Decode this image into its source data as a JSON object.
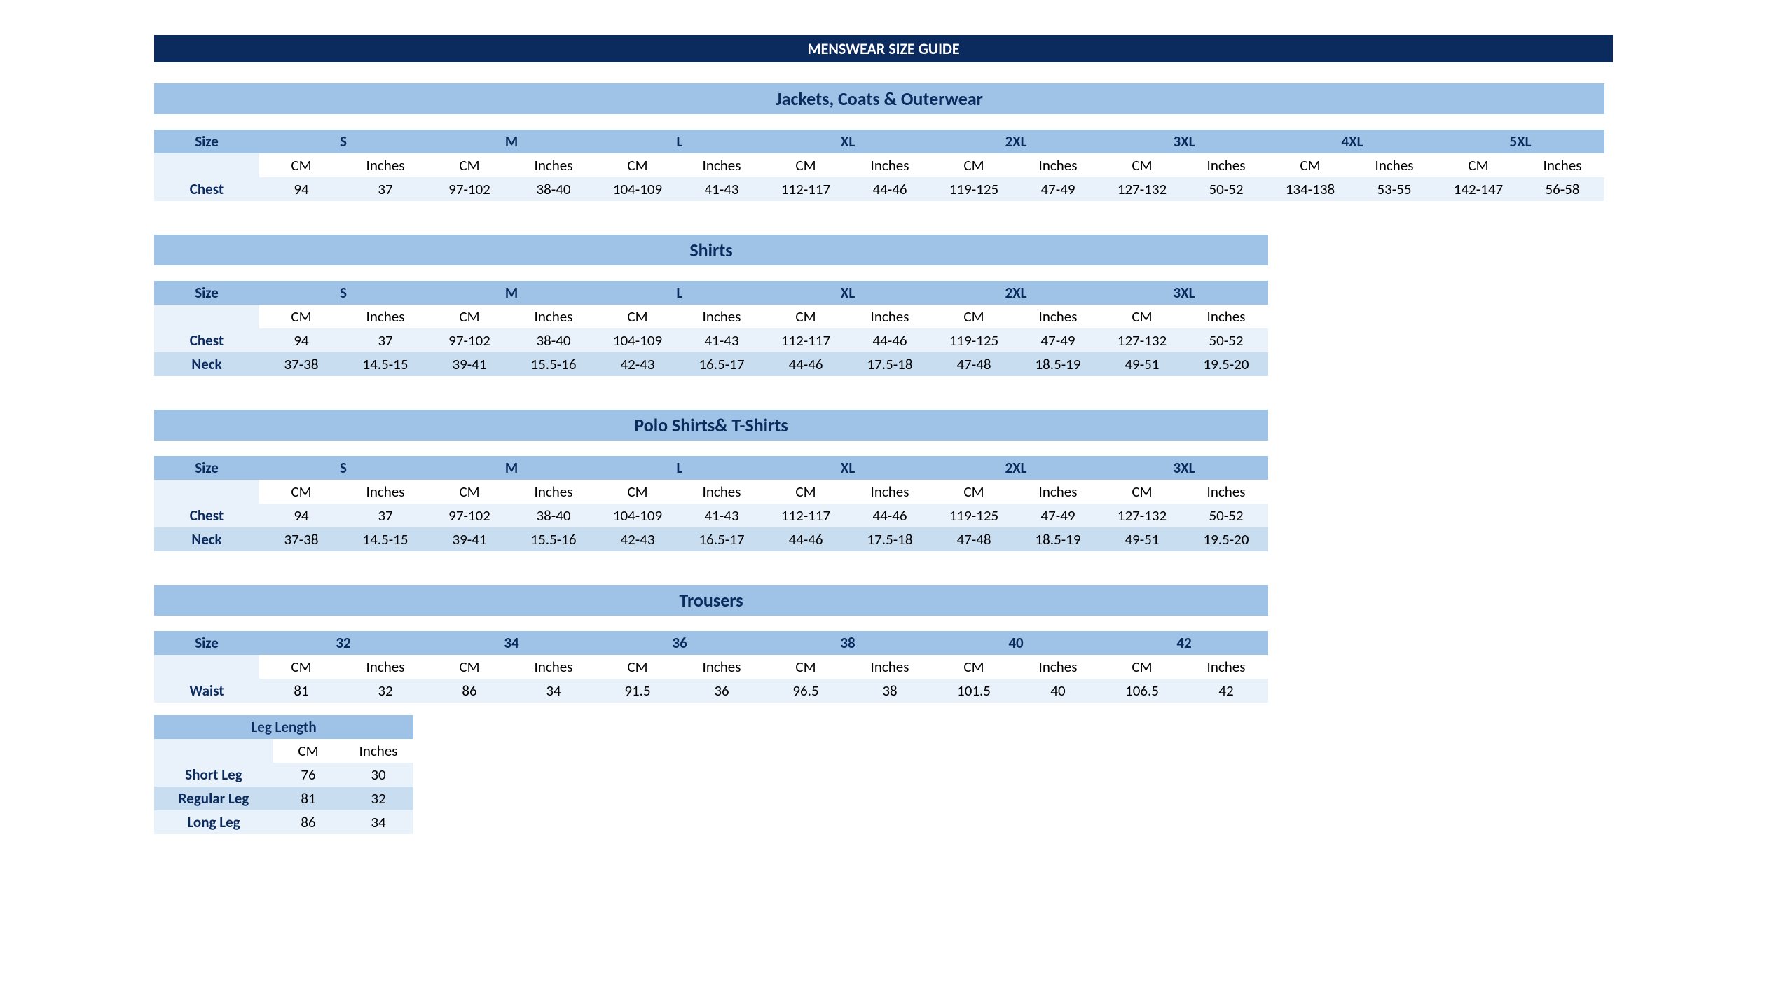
{
  "colors": {
    "main_title_bg": "#0b2a5e",
    "main_title_text": "#ffffff",
    "section_title_bg": "#9ec3e6",
    "section_title_text": "#0b2a5e",
    "header_bg": "#9ec3e6",
    "header_text": "#0b2a5e",
    "unit_blank_bg": "#e9f1fa",
    "row_a_bg": "#e9f1fa",
    "row_b_bg": "#c8ddf0",
    "page_bg": "#ffffff",
    "body_text": "#000000"
  },
  "layout": {
    "label_col_w": 150,
    "data_col_w": 120,
    "leg_label_col_w": 170,
    "leg_data_col_w": 100,
    "title_fontsize": 22,
    "section_title_fontsize": 26,
    "cell_fontsize": 21
  },
  "main_title": "MENSWEAR SIZE GUIDE",
  "size_label": "Size",
  "unit_cm": "CM",
  "unit_in": "Inches",
  "sections": [
    {
      "title": "Jackets, Coats & Outerwear",
      "full_width_title": true,
      "sizes": [
        "S",
        "M",
        "L",
        "XL",
        "2XL",
        "3XL",
        "4XL",
        "5XL"
      ],
      "rows": [
        {
          "label": "Chest",
          "values": [
            {
              "cm": "94",
              "in": "37"
            },
            {
              "cm": "97-102",
              "in": "38-40"
            },
            {
              "cm": "104-109",
              "in": "41-43"
            },
            {
              "cm": "112-117",
              "in": "44-46"
            },
            {
              "cm": "119-125",
              "in": "47-49"
            },
            {
              "cm": "127-132",
              "in": "50-52"
            },
            {
              "cm": "134-138",
              "in": "53-55"
            },
            {
              "cm": "142-147",
              "in": "56-58"
            }
          ]
        }
      ]
    },
    {
      "title": "Shirts",
      "full_width_title": false,
      "sizes": [
        "S",
        "M",
        "L",
        "XL",
        "2XL",
        "3XL"
      ],
      "rows": [
        {
          "label": "Chest",
          "values": [
            {
              "cm": "94",
              "in": "37"
            },
            {
              "cm": "97-102",
              "in": "38-40"
            },
            {
              "cm": "104-109",
              "in": "41-43"
            },
            {
              "cm": "112-117",
              "in": "44-46"
            },
            {
              "cm": "119-125",
              "in": "47-49"
            },
            {
              "cm": "127-132",
              "in": "50-52"
            }
          ]
        },
        {
          "label": "Neck",
          "values": [
            {
              "cm": "37-38",
              "in": "14.5-15"
            },
            {
              "cm": "39-41",
              "in": "15.5-16"
            },
            {
              "cm": "42-43",
              "in": "16.5-17"
            },
            {
              "cm": "44-46",
              "in": "17.5-18"
            },
            {
              "cm": "47-48",
              "in": "18.5-19"
            },
            {
              "cm": "49-51",
              "in": "19.5-20"
            }
          ]
        }
      ]
    },
    {
      "title": "Polo Shirts& T-Shirts",
      "full_width_title": false,
      "sizes": [
        "S",
        "M",
        "L",
        "XL",
        "2XL",
        "3XL"
      ],
      "rows": [
        {
          "label": "Chest",
          "values": [
            {
              "cm": "94",
              "in": "37"
            },
            {
              "cm": "97-102",
              "in": "38-40"
            },
            {
              "cm": "104-109",
              "in": "41-43"
            },
            {
              "cm": "112-117",
              "in": "44-46"
            },
            {
              "cm": "119-125",
              "in": "47-49"
            },
            {
              "cm": "127-132",
              "in": "50-52"
            }
          ]
        },
        {
          "label": "Neck",
          "values": [
            {
              "cm": "37-38",
              "in": "14.5-15"
            },
            {
              "cm": "39-41",
              "in": "15.5-16"
            },
            {
              "cm": "42-43",
              "in": "16.5-17"
            },
            {
              "cm": "44-46",
              "in": "17.5-18"
            },
            {
              "cm": "47-48",
              "in": "18.5-19"
            },
            {
              "cm": "49-51",
              "in": "19.5-20"
            }
          ]
        }
      ]
    },
    {
      "title": "Trousers",
      "full_width_title": false,
      "sizes": [
        "32",
        "34",
        "36",
        "38",
        "40",
        "42"
      ],
      "rows": [
        {
          "label": "Waist",
          "values": [
            {
              "cm": "81",
              "in": "32"
            },
            {
              "cm": "86",
              "in": "34"
            },
            {
              "cm": "91.5",
              "in": "36"
            },
            {
              "cm": "96.5",
              "in": "38"
            },
            {
              "cm": "101.5",
              "in": "40"
            },
            {
              "cm": "106.5",
              "in": "42"
            }
          ]
        }
      ],
      "leg_table": {
        "title": "Leg Length",
        "rows": [
          {
            "label": "Short Leg",
            "cm": "76",
            "in": "30"
          },
          {
            "label": "Regular Leg",
            "cm": "81",
            "in": "32"
          },
          {
            "label": "Long Leg",
            "cm": "86",
            "in": "34"
          }
        ]
      }
    }
  ]
}
